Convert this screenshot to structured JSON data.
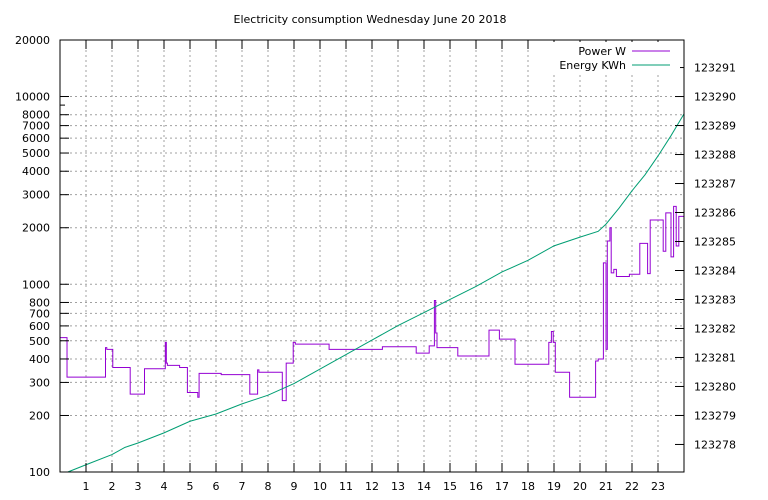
{
  "chart_data": {
    "type": "line",
    "title": "Electricity consumption Wednesday June 20 2018",
    "xlabel": "",
    "ylabel": "",
    "x_range": [
      0,
      24
    ],
    "x_ticks": [
      "1",
      "2",
      "3",
      "4",
      "5",
      "6",
      "7",
      "8",
      "9",
      "10",
      "11",
      "12",
      "13",
      "14",
      "15",
      "16",
      "17",
      "18",
      "19",
      "20",
      "21",
      "22",
      "23"
    ],
    "y_left": {
      "scale": "log",
      "range": [
        100,
        20000
      ],
      "tick_labels": [
        "100",
        "200",
        "300",
        "400",
        "500",
        "600",
        "700",
        "800",
        "1000",
        "2000",
        "3000",
        "4000",
        "5000",
        "6000",
        "7000",
        "8000",
        "10000",
        "20000"
      ]
    },
    "y_right": {
      "scale": "linear",
      "range": [
        123277.05,
        123291.95
      ],
      "tick_labels": [
        "123278",
        "123279",
        "123280",
        "123281",
        "123282",
        "123283",
        "123284",
        "123285",
        "123286",
        "123287",
        "123288",
        "123289",
        "123290",
        "123291"
      ]
    },
    "grid": true,
    "legend_position": "top-right",
    "legend_labels": {
      "power": "Power W",
      "energy": "Energy KWh"
    },
    "colors": {
      "power": "#9400d3",
      "energy": "#009e73"
    },
    "series": [
      {
        "name": "Power W",
        "axis": "left",
        "x": [
          0,
          0.27,
          0.27,
          1.75,
          1.75,
          1.8,
          1.8,
          2.03,
          2.03,
          2.1,
          2.1,
          2.7,
          2.7,
          3.25,
          3.25,
          4.05,
          4.05,
          4.09,
          4.09,
          4.13,
          4.13,
          4.6,
          4.6,
          4.9,
          4.9,
          5.3,
          5.3,
          5.35,
          5.35,
          6.2,
          6.2,
          7.3,
          7.3,
          7.6,
          7.6,
          7.65,
          7.65,
          8.55,
          8.55,
          8.7,
          8.7,
          8.97,
          8.97,
          9.05,
          9.05,
          10.35,
          10.35,
          11.5,
          11.5,
          12.4,
          12.4,
          13.7,
          13.7,
          14.2,
          14.2,
          14.4,
          14.4,
          14.45,
          14.45,
          14.5,
          14.5,
          15.3,
          15.3,
          16.5,
          16.5,
          16.9,
          16.9,
          17.5,
          17.5,
          18.8,
          18.8,
          18.9,
          18.9,
          18.97,
          18.97,
          19.05,
          19.05,
          19.6,
          19.6,
          20.6,
          20.6,
          20.7,
          20.7,
          20.9,
          20.9,
          21.0,
          21.0,
          21.05,
          21.05,
          21.15,
          21.15,
          21.2,
          21.2,
          21.3,
          21.3,
          21.4,
          21.4,
          21.9,
          21.9,
          22.3,
          22.3,
          22.6,
          22.6,
          22.7,
          22.7,
          23.2,
          23.2,
          23.3,
          23.3,
          23.5,
          23.5,
          23.6,
          23.6,
          23.7,
          23.7,
          23.8,
          23.8,
          24.0
        ],
        "values": [
          520,
          520,
          320,
          320,
          460,
          460,
          450,
          450,
          360,
          360,
          360,
          360,
          260,
          260,
          355,
          355,
          490,
          490,
          380,
          380,
          370,
          370,
          360,
          360,
          265,
          265,
          250,
          250,
          335,
          335,
          330,
          330,
          260,
          260,
          350,
          350,
          340,
          340,
          240,
          240,
          380,
          380,
          490,
          490,
          480,
          480,
          450,
          450,
          450,
          450,
          465,
          465,
          430,
          430,
          470,
          470,
          820,
          820,
          550,
          550,
          460,
          460,
          415,
          415,
          570,
          570,
          510,
          510,
          375,
          375,
          490,
          490,
          560,
          560,
          490,
          490,
          340,
          340,
          250,
          250,
          390,
          390,
          400,
          400,
          1300,
          1300,
          450,
          450,
          1700,
          1700,
          2000,
          2000,
          1150,
          1150,
          1200,
          1200,
          1100,
          1100,
          1130,
          1130,
          1650,
          1650,
          1140,
          1140,
          2200,
          2200,
          1500,
          1500,
          2400,
          2400,
          1400,
          1400,
          2600,
          2600,
          1600,
          1600,
          2300,
          2300
        ]
      },
      {
        "name": "Energy KWh",
        "axis": "right",
        "x": [
          0.3,
          1.0,
          2.0,
          2.5,
          3.0,
          4.0,
          5.0,
          6.0,
          7.0,
          8.0,
          9.0,
          10.0,
          11.0,
          12.0,
          13.0,
          14.0,
          15.0,
          16.0,
          17.0,
          18.0,
          19.0,
          20.0,
          20.7,
          21.0,
          21.5,
          22.0,
          22.5,
          23.0,
          23.5,
          24.0
        ],
        "values": [
          123277.05,
          123277.3,
          123277.65,
          123277.9,
          123278.05,
          123278.4,
          123278.8,
          123279.05,
          123279.4,
          123279.7,
          123280.1,
          123280.6,
          123281.1,
          123281.6,
          123282.1,
          123282.55,
          123283.0,
          123283.45,
          123283.95,
          123284.35,
          123284.85,
          123285.15,
          123285.35,
          123285.6,
          123286.15,
          123286.75,
          123287.3,
          123287.95,
          123288.65,
          123289.4
        ]
      }
    ]
  }
}
